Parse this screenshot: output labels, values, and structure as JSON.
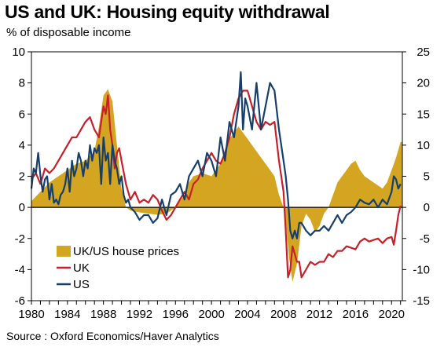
{
  "header": {
    "title": "US and UK: Housing equity withdrawal",
    "subtitle": "% of disposable income"
  },
  "footer": {
    "source": "Source : Oxford Economics/Haver Analytics"
  },
  "colors": {
    "uk_us_house_prices": "#d4a520",
    "uk": "#c8202a",
    "us": "#173f6b"
  },
  "chart_data": {
    "type": "line",
    "title": "US and UK: Housing equity withdrawal",
    "ylabel": "% of disposable income",
    "xlim": [
      1980,
      2021.2
    ],
    "ylim": [
      -6,
      10
    ],
    "y2lim": [
      -15,
      25
    ],
    "x_ticks": [
      "1980",
      "1984",
      "1988",
      "1992",
      "1996",
      "2000",
      "2004",
      "2008",
      "2012",
      "2016",
      "2020"
    ],
    "y_ticks": [
      "10",
      "8",
      "6",
      "4",
      "2",
      "0",
      "-2",
      "-4",
      "-6"
    ],
    "y2_ticks": [
      "25",
      "20",
      "15",
      "10",
      "5",
      "0",
      "-5",
      "-10",
      "-15"
    ],
    "legend": {
      "position": "bottom-left",
      "entries": [
        "UK/US house prices",
        "UK",
        "US"
      ]
    },
    "series": [
      {
        "name": "UK/US house prices",
        "type": "area",
        "axis": "right",
        "x": [
          1980,
          1981,
          1982,
          1983,
          1984,
          1985,
          1986,
          1987,
          1987.5,
          1988,
          1988.5,
          1989,
          1989.5,
          1990,
          1990.5,
          1991,
          1992,
          1993,
          1994,
          1995,
          1996,
          1997,
          1997.5,
          1998,
          1999,
          2000,
          2001,
          2001.5,
          2002,
          2003,
          2003.5,
          2004,
          2005,
          2006,
          2007,
          2007.5,
          2008,
          2008.3,
          2008.6,
          2009,
          2009.5,
          2010,
          2010.5,
          2011,
          2011.5,
          2012,
          2012.5,
          2013,
          2013.5,
          2014,
          2014.5,
          2015,
          2015.5,
          2016,
          2016.5,
          2017,
          2018,
          2019,
          2019.5,
          2020,
          2020.5,
          2021,
          2021.2
        ],
        "values": [
          1,
          2.5,
          4,
          5,
          6,
          7,
          7.5,
          9,
          13,
          18,
          19,
          17,
          10,
          3,
          0,
          -0.5,
          -0.8,
          -1,
          -1.2,
          -1,
          0,
          2,
          4,
          5,
          5.5,
          5,
          7,
          9,
          11,
          13,
          12,
          11,
          9,
          7,
          5,
          2,
          0,
          -3,
          -8,
          -12,
          -9,
          -3,
          -1,
          -2,
          -4,
          -3,
          -1,
          0,
          2,
          4,
          5,
          6,
          7,
          7.5,
          6,
          5,
          4,
          3,
          4,
          6,
          8,
          10.5,
          10.5
        ]
      },
      {
        "name": "UK",
        "axis": "left",
        "x": [
          1980,
          1980.5,
          1981,
          1981.5,
          1982,
          1982.5,
          1983,
          1983.5,
          1984,
          1984.5,
          1985,
          1985.5,
          1986,
          1986.5,
          1987,
          1987.5,
          1988,
          1988.25,
          1988.5,
          1988.75,
          1989,
          1989.25,
          1989.5,
          1989.75,
          1990,
          1990.5,
          1991,
          1991.5,
          1992,
          1992.5,
          1993,
          1993.5,
          1994,
          1994.5,
          1995,
          1995.5,
          1996,
          1996.5,
          1997,
          1997.5,
          1998,
          1998.5,
          1999,
          1999.5,
          2000,
          2000.5,
          2001,
          2001.5,
          2002,
          2002.5,
          2003,
          2003.5,
          2004,
          2004.5,
          2005,
          2005.5,
          2006,
          2006.5,
          2007,
          2007.5,
          2008,
          2008.25,
          2008.5,
          2008.75,
          2009,
          2009.25,
          2009.5,
          2009.75,
          2010,
          2010.5,
          2011,
          2011.5,
          2012,
          2012.5,
          2013,
          2013.5,
          2014,
          2014.5,
          2015,
          2015.5,
          2016,
          2016.5,
          2017,
          2017.5,
          2018,
          2018.5,
          2019,
          2019.5,
          2020,
          2020.25,
          2020.5,
          2020.75,
          2021
        ],
        "values": [
          1.8,
          2.2,
          1.5,
          2.5,
          2.2,
          2.5,
          3.0,
          3.5,
          4.0,
          4.5,
          4.5,
          5.0,
          5.5,
          5.8,
          5.0,
          4.5,
          6.5,
          6.0,
          7.2,
          5.0,
          4.0,
          2.5,
          3.5,
          3.8,
          3.0,
          1.5,
          0.5,
          1.0,
          0.3,
          0.5,
          0.3,
          0.8,
          0.5,
          -0.2,
          -0.8,
          -0.5,
          0.0,
          0.5,
          1.0,
          0.5,
          1.5,
          1.8,
          2.5,
          3.0,
          3.5,
          3.0,
          2.8,
          3.5,
          4.5,
          6.0,
          7.0,
          7.5,
          7.5,
          6.5,
          5.5,
          5.0,
          5.5,
          5.3,
          5.5,
          3.0,
          1.0,
          -1.5,
          -4.5,
          -4.0,
          -2.5,
          -3.0,
          -3.5,
          -3.5,
          -4.5,
          -4.0,
          -3.5,
          -3.7,
          -3.5,
          -3.5,
          -3.0,
          -3.2,
          -2.8,
          -2.8,
          -2.5,
          -2.6,
          -2.7,
          -2.2,
          -2.0,
          -2.2,
          -2.1,
          -2.0,
          -2.3,
          -2.0,
          -1.9,
          -2.4,
          -1.5,
          -0.5,
          0.1
        ]
      },
      {
        "name": "US",
        "axis": "left",
        "x": [
          1980,
          1980.25,
          1980.5,
          1980.75,
          1981,
          1981.25,
          1981.5,
          1981.75,
          1982,
          1982.25,
          1982.5,
          1982.75,
          1983,
          1983.25,
          1983.5,
          1983.75,
          1984,
          1984.25,
          1984.5,
          1984.75,
          1985,
          1985.25,
          1985.5,
          1985.75,
          1986,
          1986.25,
          1986.5,
          1986.75,
          1987,
          1987.25,
          1987.5,
          1987.75,
          1988,
          1988.25,
          1988.5,
          1988.75,
          1989,
          1989.25,
          1989.5,
          1989.75,
          1990,
          1990.25,
          1990.5,
          1990.75,
          1991,
          1991.5,
          1992,
          1992.5,
          1993,
          1993.5,
          1994,
          1994.5,
          1995,
          1995.5,
          1996,
          1996.5,
          1997,
          1997.5,
          1998,
          1998.5,
          1999,
          1999.5,
          2000,
          2000.5,
          2001,
          2001.5,
          2002,
          2002.5,
          2003,
          2003.25,
          2003.5,
          2003.75,
          2004,
          2004.5,
          2005,
          2005.5,
          2006,
          2006.5,
          2007,
          2007.5,
          2008,
          2008.25,
          2008.5,
          2008.75,
          2009,
          2009.25,
          2009.5,
          2009.75,
          2010,
          2010.5,
          2011,
          2011.5,
          2012,
          2012.5,
          2013,
          2013.5,
          2014,
          2014.5,
          2015,
          2015.5,
          2016,
          2016.5,
          2017,
          2017.5,
          2018,
          2018.5,
          2019,
          2019.5,
          2020,
          2020.25,
          2020.5,
          2020.75,
          2021
        ],
        "values": [
          1.2,
          2.5,
          2.2,
          3.5,
          2.0,
          1.0,
          1.8,
          2.0,
          0.5,
          1.5,
          0.3,
          0.5,
          0.2,
          0.8,
          1.0,
          1.5,
          2.5,
          1.0,
          3.0,
          2.0,
          2.5,
          3.5,
          3.0,
          2.0,
          3.0,
          2.5,
          4.0,
          3.0,
          3.8,
          3.5,
          4.0,
          1.5,
          4.5,
          3.0,
          3.5,
          1.5,
          4.0,
          3.0,
          2.5,
          1.5,
          2.0,
          0.8,
          0.3,
          0.5,
          0.0,
          -0.3,
          -0.8,
          -0.5,
          -0.5,
          -1.0,
          -0.7,
          0.5,
          -0.5,
          0.8,
          1.0,
          1.5,
          0.5,
          2.0,
          2.5,
          3.0,
          2.0,
          3.5,
          3.0,
          2.0,
          4.5,
          3.0,
          5.5,
          4.5,
          6.5,
          8.7,
          5.0,
          7.0,
          6.5,
          5.0,
          8.0,
          5.0,
          6.5,
          8.0,
          7.5,
          5.0,
          3.0,
          2.0,
          0.5,
          -1.5,
          -2.0,
          -1.5,
          -2.0,
          -1.0,
          -1.0,
          -1.5,
          -1.8,
          -1.5,
          -1.5,
          -1.2,
          -1.5,
          -1.0,
          -0.5,
          -1.0,
          -0.5,
          -0.3,
          0.0,
          0.5,
          0.3,
          0.2,
          0.5,
          0.0,
          0.5,
          0.2,
          1.0,
          2.0,
          1.8,
          1.2,
          1.5
        ]
      }
    ]
  }
}
